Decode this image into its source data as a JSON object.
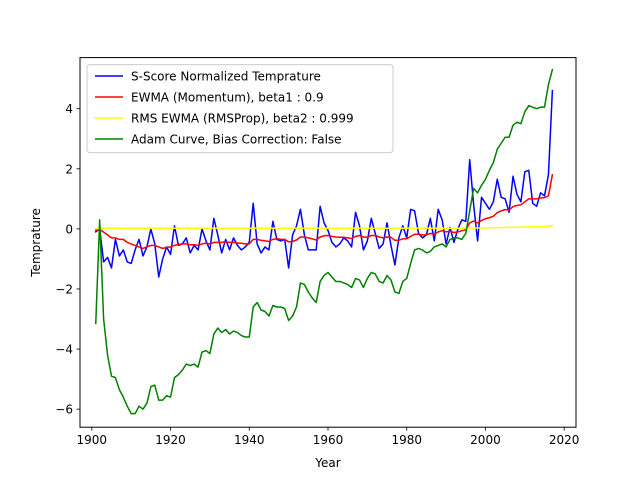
{
  "chart_data": {
    "type": "line",
    "title": "",
    "xlabel": "Year",
    "ylabel": "Temprature",
    "xlim": [
      1897,
      2023
    ],
    "ylim": [
      -6.6,
      5.7
    ],
    "xticks": [
      1900,
      1920,
      1940,
      1960,
      1980,
      2000,
      2020
    ],
    "yticks": [
      -6,
      -4,
      -2,
      0,
      2,
      4
    ],
    "grid": false,
    "legend_position": "top-left",
    "x": [
      1901,
      1902,
      1903,
      1904,
      1905,
      1906,
      1907,
      1908,
      1909,
      1910,
      1911,
      1912,
      1913,
      1914,
      1915,
      1916,
      1917,
      1918,
      1919,
      1920,
      1921,
      1922,
      1923,
      1924,
      1925,
      1926,
      1927,
      1928,
      1929,
      1930,
      1931,
      1932,
      1933,
      1934,
      1935,
      1936,
      1937,
      1938,
      1939,
      1940,
      1941,
      1942,
      1943,
      1944,
      1945,
      1946,
      1947,
      1948,
      1949,
      1950,
      1951,
      1952,
      1953,
      1954,
      1955,
      1956,
      1957,
      1958,
      1959,
      1960,
      1961,
      1962,
      1963,
      1964,
      1965,
      1966,
      1967,
      1968,
      1969,
      1970,
      1971,
      1972,
      1973,
      1974,
      1975,
      1976,
      1977,
      1978,
      1979,
      1980,
      1981,
      1982,
      1983,
      1984,
      1985,
      1986,
      1987,
      1988,
      1989,
      1990,
      1991,
      1992,
      1993,
      1994,
      1995,
      1996,
      1997,
      1998,
      1999,
      2000,
      2001,
      2002,
      2003,
      2004,
      2005,
      2006,
      2007,
      2008,
      2009,
      2010,
      2011,
      2012,
      2013,
      2014,
      2015,
      2016,
      2017
    ],
    "series": [
      {
        "name": "S-Score Normalized Temprature",
        "color": "#0000ff",
        "values": [
          -0.1,
          0.0,
          -1.1,
          -0.95,
          -1.3,
          -0.35,
          -0.9,
          -0.7,
          -1.1,
          -1.15,
          -0.7,
          -0.35,
          -0.9,
          -0.6,
          0.0,
          -0.5,
          -1.6,
          -1.0,
          -0.6,
          -0.85,
          0.1,
          -0.55,
          -0.5,
          -0.3,
          -0.8,
          -0.55,
          -0.7,
          0.0,
          -0.4,
          -0.7,
          0.35,
          -0.2,
          -0.8,
          -0.35,
          -0.7,
          -0.3,
          -0.55,
          -0.7,
          -0.6,
          -0.45,
          0.85,
          -0.5,
          -0.8,
          -0.6,
          -0.7,
          0.25,
          -0.35,
          -0.4,
          -0.35,
          -1.3,
          -0.2,
          0.1,
          0.65,
          -0.2,
          -0.7,
          -0.7,
          -0.7,
          0.75,
          0.2,
          -0.05,
          -0.45,
          -0.6,
          -0.5,
          -0.3,
          -0.4,
          -0.6,
          0.55,
          0.1,
          -0.7,
          -0.4,
          0.35,
          -0.15,
          -0.65,
          -0.5,
          0.2,
          -0.55,
          -1.2,
          -0.3,
          0.1,
          -0.3,
          0.65,
          0.6,
          -0.15,
          -0.3,
          -0.2,
          0.35,
          -0.4,
          0.65,
          0.3,
          -0.5,
          0.05,
          -0.45,
          0.0,
          0.3,
          0.25,
          2.3,
          0.8,
          -0.4,
          1.05,
          0.85,
          0.65,
          0.9,
          1.65,
          1.05,
          1.0,
          0.55,
          1.75,
          1.15,
          0.9,
          1.9,
          1.95,
          0.85,
          0.75,
          1.2,
          1.1,
          1.8,
          4.6
        ]
      },
      {
        "name": "EWMA (Momentum), beta1 : 0.9",
        "color": "#ff0000",
        "values": [
          -0.05,
          -0.02,
          -0.11,
          -0.2,
          -0.3,
          -0.3,
          -0.35,
          -0.35,
          -0.45,
          -0.5,
          -0.55,
          -0.6,
          -0.65,
          -0.6,
          -0.55,
          -0.55,
          -0.6,
          -0.65,
          -0.62,
          -0.6,
          -0.55,
          -0.52,
          -0.5,
          -0.5,
          -0.53,
          -0.53,
          -0.55,
          -0.5,
          -0.48,
          -0.5,
          -0.45,
          -0.45,
          -0.45,
          -0.43,
          -0.45,
          -0.45,
          -0.47,
          -0.48,
          -0.5,
          -0.5,
          -0.35,
          -0.35,
          -0.38,
          -0.4,
          -0.42,
          -0.35,
          -0.33,
          -0.35,
          -0.35,
          -0.43,
          -0.42,
          -0.37,
          -0.27,
          -0.27,
          -0.3,
          -0.33,
          -0.37,
          -0.27,
          -0.23,
          -0.22,
          -0.25,
          -0.27,
          -0.28,
          -0.28,
          -0.3,
          -0.32,
          -0.25,
          -0.22,
          -0.27,
          -0.28,
          -0.22,
          -0.22,
          -0.27,
          -0.3,
          -0.27,
          -0.28,
          -0.38,
          -0.38,
          -0.33,
          -0.33,
          -0.25,
          -0.18,
          -0.18,
          -0.2,
          -0.2,
          -0.15,
          -0.18,
          -0.1,
          -0.06,
          -0.1,
          -0.08,
          -0.12,
          -0.1,
          -0.06,
          -0.03,
          0.2,
          0.26,
          0.2,
          0.28,
          0.34,
          0.37,
          0.42,
          0.54,
          0.6,
          0.64,
          0.63,
          0.74,
          0.78,
          0.8,
          0.9,
          1.0,
          1.0,
          1.0,
          1.03,
          1.04,
          1.1,
          1.8
        ]
      },
      {
        "name": "RMS EWMA (RMSProp), beta2 : 0.999",
        "color": "#ffff00",
        "values": [
          0.01,
          0.01,
          0.02,
          0.02,
          0.02,
          0.02,
          0.02,
          0.02,
          0.02,
          0.02,
          0.02,
          0.02,
          0.02,
          0.02,
          0.02,
          0.02,
          0.02,
          0.02,
          0.02,
          0.02,
          0.02,
          0.02,
          0.02,
          0.02,
          0.02,
          0.02,
          0.02,
          0.02,
          0.02,
          0.02,
          0.02,
          0.02,
          0.02,
          0.02,
          0.02,
          0.02,
          0.02,
          0.02,
          0.02,
          0.02,
          0.02,
          0.02,
          0.02,
          0.02,
          0.02,
          0.02,
          0.02,
          0.02,
          0.02,
          0.02,
          0.02,
          0.02,
          0.02,
          0.02,
          0.02,
          0.02,
          0.02,
          0.02,
          0.02,
          0.02,
          0.02,
          0.02,
          0.02,
          0.02,
          0.02,
          0.02,
          0.02,
          0.02,
          0.02,
          0.02,
          0.02,
          0.02,
          0.02,
          0.02,
          0.02,
          0.02,
          0.02,
          0.02,
          0.02,
          0.02,
          0.02,
          0.02,
          0.02,
          0.02,
          0.02,
          0.02,
          0.02,
          0.02,
          0.02,
          0.02,
          0.02,
          0.02,
          0.02,
          0.02,
          0.02,
          0.03,
          0.03,
          0.03,
          0.03,
          0.03,
          0.04,
          0.04,
          0.04,
          0.04,
          0.05,
          0.05,
          0.05,
          0.05,
          0.06,
          0.06,
          0.07,
          0.07,
          0.07,
          0.07,
          0.08,
          0.09,
          0.11
        ]
      },
      {
        "name": "Adam Curve, Bias Correction: False",
        "color": "#008000",
        "values": [
          -3.15,
          0.3,
          -3.0,
          -4.2,
          -4.9,
          -4.95,
          -5.35,
          -5.6,
          -5.9,
          -6.15,
          -6.15,
          -5.9,
          -6.0,
          -5.8,
          -5.25,
          -5.2,
          -5.7,
          -5.7,
          -5.55,
          -5.6,
          -4.95,
          -4.85,
          -4.7,
          -4.5,
          -4.55,
          -4.5,
          -4.6,
          -4.1,
          -4.05,
          -4.15,
          -3.5,
          -3.3,
          -3.45,
          -3.35,
          -3.5,
          -3.4,
          -3.45,
          -3.55,
          -3.6,
          -3.6,
          -2.6,
          -2.45,
          -2.7,
          -2.75,
          -2.9,
          -2.55,
          -2.6,
          -2.6,
          -2.65,
          -3.05,
          -2.9,
          -2.6,
          -1.8,
          -1.85,
          -2.1,
          -2.3,
          -2.45,
          -1.75,
          -1.55,
          -1.45,
          -1.6,
          -1.75,
          -1.75,
          -1.8,
          -1.85,
          -1.95,
          -1.65,
          -1.7,
          -1.95,
          -1.65,
          -1.45,
          -1.5,
          -1.75,
          -1.8,
          -1.55,
          -1.7,
          -2.1,
          -2.15,
          -1.75,
          -1.65,
          -1.15,
          -0.7,
          -0.65,
          -0.7,
          -0.8,
          -0.75,
          -0.6,
          -0.55,
          -0.5,
          -0.6,
          -0.35,
          -0.3,
          -0.3,
          -0.35,
          -0.15,
          0.6,
          1.35,
          1.2,
          1.45,
          1.65,
          1.95,
          2.2,
          2.65,
          2.85,
          3.05,
          3.05,
          3.45,
          3.55,
          3.5,
          3.9,
          4.1,
          4.05,
          4.0,
          4.05,
          4.05,
          4.8,
          5.3
        ]
      }
    ]
  }
}
